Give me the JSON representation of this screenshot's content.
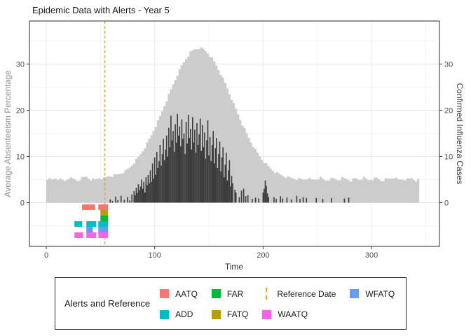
{
  "title": "Epidemic Data with Alerts - Year 5",
  "axes": {
    "x": {
      "label": "Time",
      "ticks": [
        0,
        100,
        200,
        300
      ],
      "minor": [
        50,
        150,
        250,
        350
      ]
    },
    "y_left": {
      "label": "Average Absenteeism Percentage",
      "ticks": [
        0,
        10,
        20,
        30
      ],
      "minor": [
        -5,
        5,
        15,
        25,
        35
      ]
    },
    "y_right": {
      "label": "Confirmed Influenza Cases",
      "ticks": [
        0,
        10,
        20,
        30
      ]
    }
  },
  "legend": {
    "title": "Alerts and Reference",
    "items": [
      {
        "label": "AATQ",
        "key": "square",
        "color": "#F8766D"
      },
      {
        "label": "ADD",
        "key": "square",
        "color": "#00BFC4"
      },
      {
        "label": "FAR",
        "key": "square",
        "color": "#00BA38"
      },
      {
        "label": "FATQ",
        "key": "square",
        "color": "#B79F00"
      },
      {
        "label": "Reference Date",
        "key": "vline",
        "color": "#FFA500"
      },
      {
        "label": "WAATQ",
        "key": "square",
        "color": "#F564E3"
      },
      {
        "label": "WFATQ",
        "key": "square",
        "color": "#619CFF"
      }
    ]
  },
  "colors": {
    "influenza_area": "#CCCCCC",
    "absenteeism_bars": "#3C3C3C",
    "reference_line": "#FFA500",
    "grid_major": "#E8E8E8",
    "grid_minor": "#F3F3F3",
    "panel_border": "#2B2B2B",
    "tick_text": "#4D4D4D"
  },
  "chart_data": {
    "type": "mixed: area (influenza) + bar (absenteeism) + tile (alerts) + vline (reference)",
    "title": "Epidemic Data with Alerts - Year 5",
    "xlabel": "Time",
    "ylabel_left": "Average Absenteeism Percentage",
    "ylabel_right": "Confirmed Influenza Cases",
    "x_range_shown": [
      0,
      356
    ],
    "y_ticks": [
      0,
      10,
      20,
      30
    ],
    "reference_date": 54,
    "influenza": {
      "series_name": "Confirmed Influenza Cases",
      "axis": "right",
      "x": [
        0,
        4,
        8,
        12,
        16,
        20,
        24,
        28,
        32,
        36,
        40,
        44,
        48,
        52,
        56,
        60,
        64,
        68,
        72,
        76,
        80,
        84,
        88,
        92,
        96,
        100,
        104,
        108,
        112,
        116,
        120,
        124,
        128,
        132,
        136,
        140,
        144,
        148,
        152,
        156,
        160,
        164,
        168,
        172,
        176,
        180,
        184,
        188,
        192,
        196,
        200,
        204,
        208,
        212,
        216,
        220,
        224,
        228,
        232,
        236,
        240,
        244,
        248,
        252,
        256,
        260,
        264,
        268,
        272,
        276,
        280,
        284,
        288,
        292,
        296,
        300,
        304,
        308,
        312,
        316,
        320,
        324,
        328,
        332,
        336,
        340,
        344
      ],
      "y": [
        5.2,
        4.9,
        5.3,
        5.0,
        4.7,
        5.4,
        5.1,
        4.8,
        5.3,
        5.6,
        5.0,
        4.9,
        5.4,
        5.2,
        5.7,
        5.8,
        6.0,
        6.4,
        6.8,
        7.6,
        8.7,
        9.8,
        11.2,
        12.8,
        14.6,
        16.6,
        18.6,
        21.0,
        23.3,
        25.6,
        27.7,
        29.6,
        31.2,
        32.5,
        33.2,
        33.5,
        33.2,
        32.4,
        31.2,
        29.7,
        27.9,
        25.8,
        23.6,
        21.3,
        19.1,
        16.9,
        14.9,
        13.1,
        11.4,
        10.0,
        8.8,
        7.8,
        7.0,
        6.4,
        6.0,
        5.6,
        5.4,
        5.2,
        5.1,
        5.0,
        5.3,
        4.9,
        5.1,
        5.4,
        4.8,
        5.0,
        5.2,
        4.9,
        5.3,
        5.1,
        4.8,
        5.2,
        5.0,
        5.4,
        4.9,
        5.1,
        5.3,
        4.8,
        5.0,
        5.2,
        5.5,
        4.9,
        5.1,
        5.0,
        5.3,
        4.8,
        5.0
      ]
    },
    "absenteeism": {
      "series_name": "Average Absenteeism Percentage",
      "axis": "left",
      "bars": [
        [
          59,
          0.7
        ],
        [
          61,
          0.4
        ],
        [
          64,
          1.3
        ],
        [
          66,
          0.5
        ],
        [
          69,
          1.5
        ],
        [
          72,
          0.6
        ],
        [
          75,
          1.2
        ],
        [
          77,
          0.5
        ],
        [
          79,
          1.8
        ],
        [
          81,
          2.5
        ],
        [
          82,
          1.6
        ],
        [
          83,
          3.2
        ],
        [
          84,
          2.1
        ],
        [
          85,
          4.0
        ],
        [
          86,
          2.7
        ],
        [
          87,
          3.5
        ],
        [
          88,
          5.0
        ],
        [
          89,
          3.0
        ],
        [
          90,
          4.5
        ],
        [
          91,
          2.2
        ],
        [
          92,
          5.5
        ],
        [
          93,
          3.8
        ],
        [
          94,
          6.0
        ],
        [
          95,
          4.2
        ],
        [
          96,
          7.0
        ],
        [
          97,
          4.5
        ],
        [
          98,
          8.5
        ],
        [
          99,
          5.2
        ],
        [
          100,
          9.8
        ],
        [
          101,
          6.0
        ],
        [
          102,
          11.0
        ],
        [
          103,
          7.5
        ],
        [
          104,
          9.0
        ],
        [
          105,
          12.5
        ],
        [
          106,
          8.0
        ],
        [
          107,
          10.5
        ],
        [
          108,
          13.8
        ],
        [
          109,
          9.2
        ],
        [
          110,
          11.5
        ],
        [
          111,
          14.5
        ],
        [
          112,
          10.0
        ],
        [
          113,
          16.2
        ],
        [
          114,
          12.0
        ],
        [
          115,
          18.8
        ],
        [
          116,
          13.5
        ],
        [
          117,
          15.5
        ],
        [
          118,
          11.0
        ],
        [
          119,
          17.0
        ],
        [
          120,
          13.0
        ],
        [
          121,
          19.2
        ],
        [
          122,
          14.5
        ],
        [
          123,
          16.5
        ],
        [
          124,
          12.2
        ],
        [
          125,
          18.0
        ],
        [
          126,
          13.8
        ],
        [
          127,
          15.0
        ],
        [
          128,
          10.5
        ],
        [
          129,
          17.5
        ],
        [
          130,
          12.8
        ],
        [
          131,
          19.0
        ],
        [
          132,
          14.0
        ],
        [
          133,
          16.0
        ],
        [
          134,
          11.5
        ],
        [
          135,
          18.5
        ],
        [
          136,
          13.0
        ],
        [
          137,
          15.8
        ],
        [
          138,
          10.8
        ],
        [
          139,
          17.2
        ],
        [
          140,
          12.5
        ],
        [
          141,
          14.8
        ],
        [
          142,
          18.2
        ],
        [
          143,
          11.2
        ],
        [
          144,
          16.8
        ],
        [
          145,
          12.0
        ],
        [
          146,
          15.2
        ],
        [
          147,
          9.5
        ],
        [
          148,
          13.5
        ],
        [
          149,
          17.8
        ],
        [
          150,
          10.2
        ],
        [
          151,
          14.2
        ],
        [
          152,
          9.0
        ],
        [
          153,
          12.5
        ],
        [
          154,
          15.5
        ],
        [
          155,
          8.5
        ],
        [
          156,
          11.8
        ],
        [
          157,
          14.0
        ],
        [
          158,
          7.5
        ],
        [
          159,
          10.5
        ],
        [
          160,
          13.2
        ],
        [
          161,
          6.8
        ],
        [
          162,
          9.8
        ],
        [
          163,
          12.0
        ],
        [
          164,
          5.5
        ],
        [
          165,
          8.2
        ],
        [
          166,
          10.8
        ],
        [
          167,
          4.8
        ],
        [
          168,
          7.0
        ],
        [
          169,
          9.2
        ],
        [
          170,
          3.5
        ],
        [
          171,
          5.8
        ],
        [
          172,
          4.2
        ],
        [
          174,
          2.8
        ],
        [
          175,
          2.2
        ],
        [
          178,
          1.2
        ],
        [
          180,
          2.6
        ],
        [
          182,
          3.0
        ],
        [
          184,
          1.4
        ],
        [
          186,
          1.6
        ],
        [
          190,
          0.8
        ],
        [
          193,
          1.1
        ],
        [
          196,
          0.9
        ],
        [
          200,
          2.2
        ],
        [
          201,
          3.0
        ],
        [
          202,
          4.8
        ],
        [
          203,
          3.6
        ],
        [
          204,
          2.0
        ],
        [
          205,
          1.2
        ],
        [
          210,
          1.2
        ],
        [
          212,
          0.8
        ],
        [
          216,
          1.4
        ],
        [
          218,
          0.9
        ],
        [
          222,
          1.1
        ],
        [
          226,
          0.7
        ],
        [
          231,
          1.5
        ],
        [
          234,
          0.8
        ],
        [
          237,
          1.2
        ],
        [
          240,
          1.0
        ],
        [
          249,
          1.0
        ],
        [
          255,
          0.8
        ],
        [
          263,
          1.0
        ],
        [
          275,
          0.9
        ],
        [
          279,
          1.1
        ]
      ]
    },
    "alerts": [
      {
        "name": "AATQ",
        "color": "#F8766D",
        "row": 0,
        "intervals": [
          [
            33,
            45
          ],
          [
            48,
            57
          ]
        ]
      },
      {
        "name": "FATQ",
        "color": "#B79F00",
        "row": 1,
        "intervals": [
          [
            50,
            57
          ]
        ]
      },
      {
        "name": "FAR",
        "color": "#00BA38",
        "row": 2,
        "intervals": [
          [
            50,
            57
          ]
        ]
      },
      {
        "name": "ADD",
        "color": "#00BFC4",
        "row": 3,
        "intervals": [
          [
            26,
            33
          ],
          [
            37,
            46
          ],
          [
            48,
            57
          ]
        ]
      },
      {
        "name": "WFATQ",
        "color": "#619CFF",
        "row": 4,
        "intervals": [
          [
            37,
            43
          ],
          [
            48,
            57
          ]
        ]
      },
      {
        "name": "WAATQ",
        "color": "#F564E3",
        "row": 5,
        "intervals": [
          [
            26,
            34
          ],
          [
            37,
            46
          ],
          [
            48,
            57
          ]
        ]
      }
    ]
  }
}
